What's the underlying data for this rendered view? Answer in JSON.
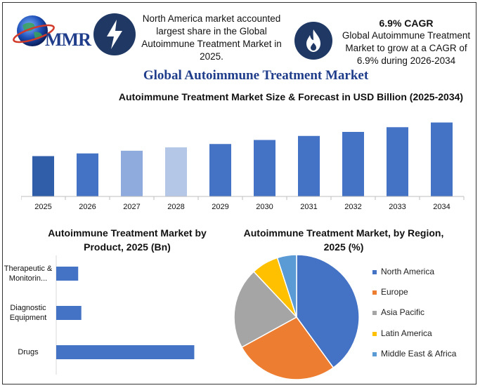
{
  "brand": {
    "logo_text": "MMR"
  },
  "callouts": {
    "left_text": "North America market accounted largest share in the Global Autoimmune Treatment Market in 2025.",
    "right_heading": "6.9% CAGR",
    "right_text": "Global Autoimmune Treatment Market to grow at a CAGR of 6.9% during 2026-2034"
  },
  "icons": {
    "left": "lightning-bolt-icon",
    "right": "flame-icon",
    "logo": "globe-icon"
  },
  "main_title": "Global Autoimmune Treatment Market",
  "colors": {
    "brand_blue": "#1f3d8a",
    "bar_blue": "#4472c4",
    "icon_navy": "#1f3864"
  },
  "chart_data": [
    {
      "type": "bar",
      "title": "Autoimmune Treatment Market Size & Forecast in USD Billion (2025-2034)",
      "categories": [
        "2025",
        "2026",
        "2027",
        "2028",
        "2029",
        "2030",
        "2031",
        "2032",
        "2033",
        "2034"
      ],
      "values": [
        60,
        64,
        68,
        73,
        78,
        84,
        90,
        96,
        103,
        110
      ],
      "colors": [
        "#305ea8",
        "#4472c4",
        "#8faadc",
        "#b4c7e7",
        "#4472c4",
        "#4472c4",
        "#4472c4",
        "#4472c4",
        "#4472c4",
        "#4472c4"
      ],
      "ylim": [
        0,
        120
      ],
      "grid": false
    },
    {
      "type": "bar",
      "orientation": "horizontal",
      "title": "Autoimmune Treatment  Market by Product, 2025 (Bn)",
      "categories": [
        "Therapeutic & Monitorin...",
        "Diagnostic Equipment",
        "Drugs"
      ],
      "values": [
        3.5,
        4,
        22
      ],
      "xlim": [
        0,
        28
      ],
      "color": "#4472c4"
    },
    {
      "type": "pie",
      "title": "Autoimmune Treatment  Market, by Region, 2025 (%)",
      "labels": [
        "North America",
        "Europe",
        "Asia Pacific",
        "Latin America",
        "Middle East & Africa"
      ],
      "values": [
        40,
        27,
        21,
        7,
        5
      ],
      "colors": [
        "#4472c4",
        "#ed7d31",
        "#a5a5a5",
        "#ffc000",
        "#5b9bd5"
      ],
      "legend": "right"
    }
  ]
}
